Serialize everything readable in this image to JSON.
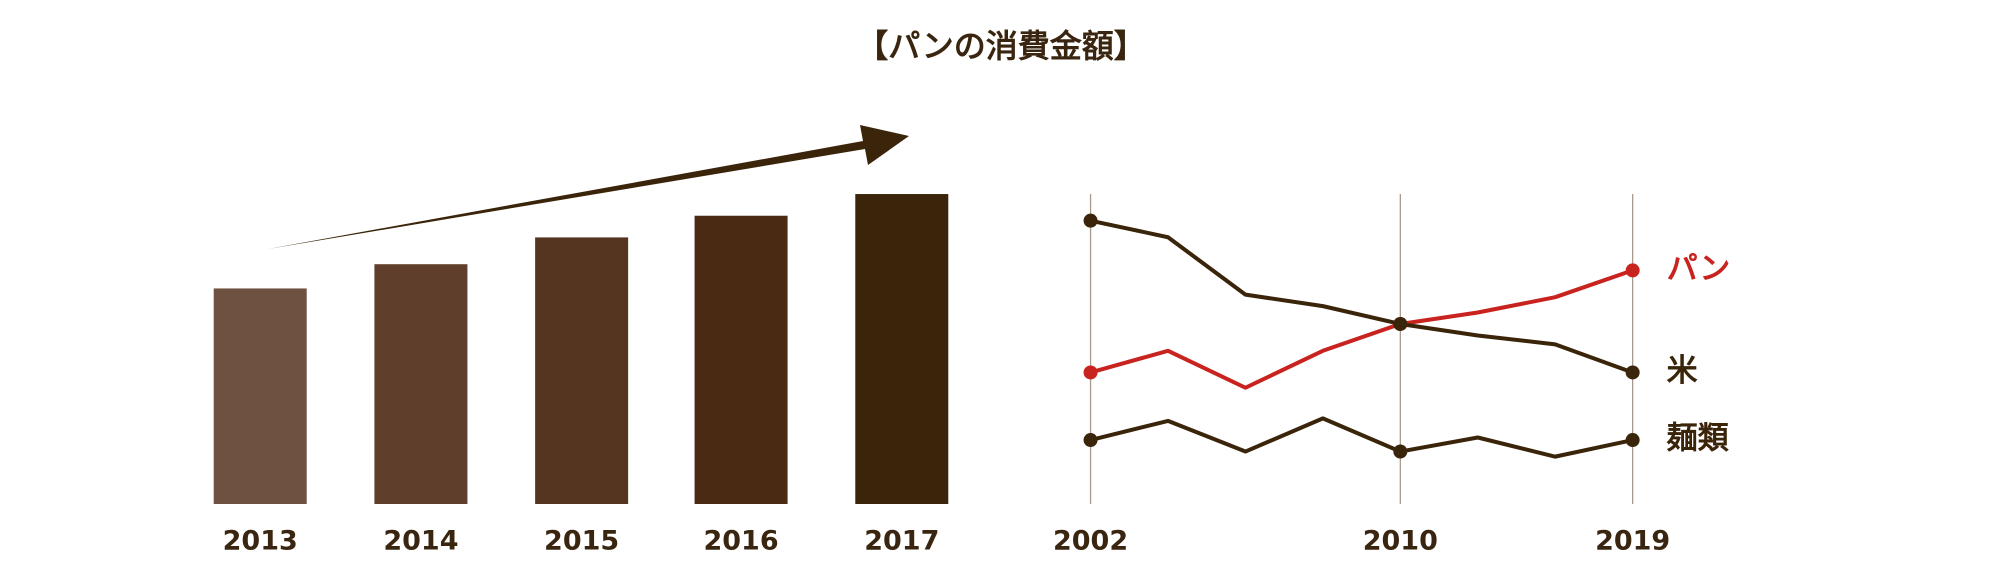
{
  "chart_data": [
    {
      "type": "bar",
      "title": "【パンの消費金額】",
      "categories": [
        "2013",
        "2014",
        "2015",
        "2016",
        "2017"
      ],
      "values": [
        169,
        188,
        209,
        226,
        243
      ],
      "colors": [
        "#6e5140",
        "#5f3f2c",
        "#553420",
        "#4a2a12",
        "#3a240a"
      ],
      "ylim": [
        0,
        250
      ]
    },
    {
      "type": "line",
      "categories": [
        "2002",
        null,
        null,
        null,
        "2010",
        null,
        null,
        "2019"
      ],
      "series": [
        {
          "name": "パン",
          "color": "#c8231e",
          "values": [
            108,
            125,
            96,
            125,
            146,
            155,
            167,
            188
          ]
        },
        {
          "name": "米",
          "color": "#3a240a",
          "values": [
            227,
            214,
            169,
            160,
            146,
            137,
            130,
            108
          ]
        },
        {
          "name": "麺類",
          "color": "#3a240a",
          "values": [
            55,
            70,
            46,
            72,
            46,
            57,
            42,
            55
          ]
        }
      ],
      "ylim": [
        0,
        250
      ],
      "grid": true
    }
  ]
}
